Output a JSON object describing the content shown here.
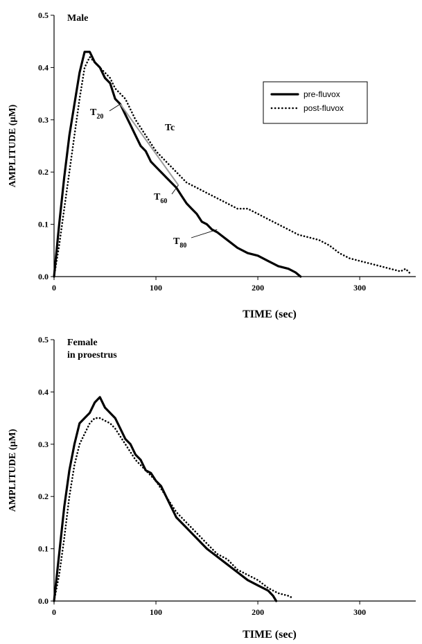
{
  "chart_data": [
    {
      "type": "line",
      "panel_label": "Male",
      "xlabel": "TIME (sec)",
      "ylabel": "AMPLITUDE (µM)",
      "xlim": [
        0,
        355
      ],
      "ylim": [
        0,
        0.5
      ],
      "xticks": [
        0,
        100,
        200,
        300
      ],
      "yticks": [
        0.0,
        0.1,
        0.2,
        0.3,
        0.4,
        0.5
      ],
      "xtick_labels": [
        "0",
        "100",
        "200",
        "300"
      ],
      "ytick_labels": [
        "0.0",
        "0.1",
        "0.2",
        "0.3",
        "0.4",
        "0.5"
      ],
      "legend": {
        "placement": "top-right",
        "entries": [
          "pre-fluvox",
          "post-fluvox"
        ]
      },
      "series": [
        {
          "name": "pre-fluvox",
          "style": "solid",
          "x": [
            0,
            5,
            10,
            15,
            20,
            25,
            30,
            35,
            40,
            45,
            50,
            55,
            60,
            65,
            70,
            75,
            80,
            85,
            90,
            95,
            100,
            105,
            110,
            115,
            120,
            125,
            130,
            135,
            140,
            145,
            150,
            155,
            160,
            170,
            180,
            190,
            200,
            210,
            220,
            230,
            237,
            242
          ],
          "y": [
            0.0,
            0.1,
            0.19,
            0.27,
            0.33,
            0.39,
            0.43,
            0.43,
            0.41,
            0.4,
            0.38,
            0.37,
            0.34,
            0.33,
            0.31,
            0.29,
            0.27,
            0.25,
            0.24,
            0.22,
            0.21,
            0.2,
            0.19,
            0.18,
            0.17,
            0.155,
            0.14,
            0.13,
            0.12,
            0.105,
            0.1,
            0.09,
            0.085,
            0.07,
            0.055,
            0.045,
            0.04,
            0.03,
            0.02,
            0.015,
            0.008,
            0.0
          ]
        },
        {
          "name": "post-fluvox",
          "style": "dotted",
          "x": [
            0,
            5,
            10,
            15,
            20,
            25,
            30,
            35,
            40,
            45,
            50,
            55,
            60,
            70,
            80,
            90,
            100,
            110,
            120,
            130,
            140,
            150,
            160,
            170,
            180,
            190,
            200,
            210,
            220,
            230,
            240,
            250,
            260,
            270,
            280,
            290,
            300,
            310,
            320,
            330,
            340,
            345,
            350
          ],
          "y": [
            0.0,
            0.06,
            0.13,
            0.2,
            0.27,
            0.34,
            0.4,
            0.42,
            0.41,
            0.4,
            0.39,
            0.38,
            0.36,
            0.34,
            0.3,
            0.27,
            0.24,
            0.22,
            0.2,
            0.18,
            0.17,
            0.16,
            0.15,
            0.14,
            0.13,
            0.13,
            0.12,
            0.11,
            0.1,
            0.09,
            0.08,
            0.075,
            0.07,
            0.06,
            0.045,
            0.035,
            0.03,
            0.025,
            0.02,
            0.015,
            0.01,
            0.015,
            0.005
          ]
        }
      ],
      "annotations": [
        {
          "text": "T",
          "subscript": "20",
          "target_x": 65,
          "target_y": 0.33
        },
        {
          "text": "Tc",
          "subscript": "",
          "target_x": 100,
          "target_y": 0.23
        },
        {
          "text": "T",
          "subscript": "60",
          "target_x": 122,
          "target_y": 0.175
        },
        {
          "text": "T",
          "subscript": "80",
          "target_x": 160,
          "target_y": 0.09
        }
      ],
      "fit_line": {
        "x": [
          65,
          122
        ],
        "y": [
          0.33,
          0.175
        ]
      }
    },
    {
      "type": "line",
      "panel_label": "Female\nin proestrus",
      "xlabel": "TIME (sec)",
      "ylabel": "AMPLITUDE (µM)",
      "xlim": [
        0,
        355
      ],
      "ylim": [
        0,
        0.5
      ],
      "xticks": [
        0,
        100,
        200,
        300
      ],
      "yticks": [
        0.0,
        0.1,
        0.2,
        0.3,
        0.4,
        0.5
      ],
      "xtick_labels": [
        "0",
        "100",
        "200",
        "300"
      ],
      "ytick_labels": [
        "0.0",
        "0.1",
        "0.2",
        "0.3",
        "0.4",
        "0.5"
      ],
      "series": [
        {
          "name": "pre-fluvox",
          "style": "solid",
          "x": [
            0,
            5,
            10,
            15,
            20,
            25,
            30,
            35,
            40,
            45,
            50,
            55,
            60,
            65,
            70,
            75,
            80,
            85,
            90,
            95,
            100,
            105,
            110,
            115,
            120,
            130,
            140,
            150,
            160,
            170,
            180,
            190,
            200,
            210,
            215,
            218
          ],
          "y": [
            0.0,
            0.09,
            0.18,
            0.25,
            0.3,
            0.34,
            0.35,
            0.36,
            0.38,
            0.39,
            0.37,
            0.36,
            0.35,
            0.33,
            0.31,
            0.3,
            0.28,
            0.27,
            0.25,
            0.245,
            0.23,
            0.22,
            0.2,
            0.18,
            0.16,
            0.14,
            0.12,
            0.1,
            0.085,
            0.07,
            0.055,
            0.04,
            0.03,
            0.02,
            0.01,
            0.0
          ]
        },
        {
          "name": "post-fluvox",
          "style": "dotted",
          "x": [
            0,
            5,
            10,
            15,
            20,
            25,
            30,
            35,
            40,
            45,
            50,
            55,
            60,
            70,
            80,
            90,
            100,
            110,
            120,
            130,
            140,
            150,
            160,
            170,
            180,
            190,
            200,
            210,
            220,
            230,
            235
          ],
          "y": [
            0.0,
            0.05,
            0.12,
            0.2,
            0.26,
            0.3,
            0.32,
            0.34,
            0.35,
            0.35,
            0.345,
            0.34,
            0.33,
            0.3,
            0.27,
            0.25,
            0.23,
            0.2,
            0.17,
            0.15,
            0.13,
            0.11,
            0.09,
            0.08,
            0.06,
            0.05,
            0.04,
            0.025,
            0.015,
            0.01,
            0.005
          ]
        }
      ]
    }
  ]
}
